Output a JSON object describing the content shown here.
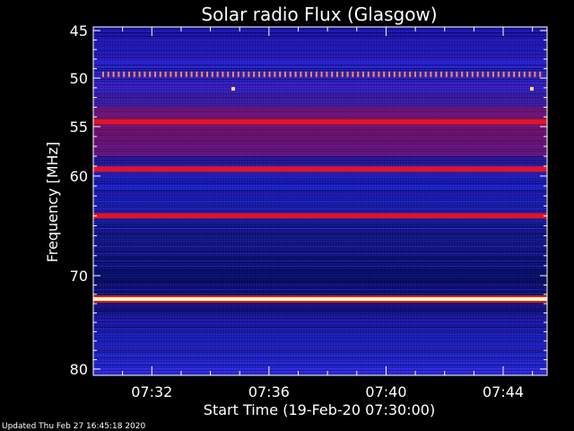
{
  "chart_data": {
    "type": "heatmap",
    "title": "Solar radio Flux (Glasgow)",
    "xlabel": "Start Time (19-Feb-20 07:30:00)",
    "ylabel": "Frequency [MHz]",
    "x_ticks": [
      "07:32",
      "07:36",
      "07:40",
      "07:44"
    ],
    "y_ticks": [
      "45",
      "50",
      "55",
      "60",
      "70",
      "80"
    ],
    "footer": "Updated Thu Feb 27 16:45:18 2020",
    "colors": {
      "background": "#000000",
      "low": "#1a1aa8",
      "mid": "#3a30e0",
      "high": "#e01428",
      "peak": "#fff8c0"
    },
    "bands": [
      {
        "freq": 49.6,
        "level": "dotted"
      },
      {
        "freq": 54.5,
        "level": "high"
      },
      {
        "freq": 59.3,
        "level": "high"
      },
      {
        "freq": 64.0,
        "level": "high"
      },
      {
        "freq": 72.5,
        "level": "peak"
      }
    ]
  }
}
